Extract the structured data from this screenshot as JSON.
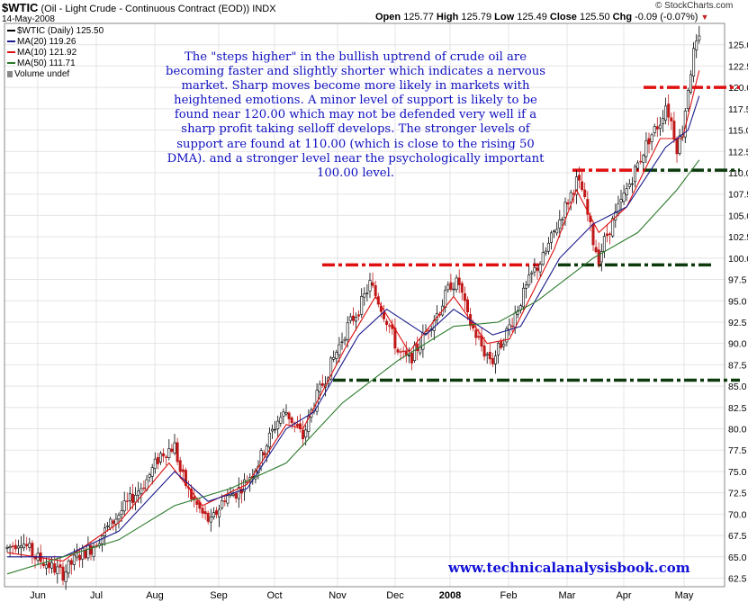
{
  "header": {
    "symbol": "$WTIC",
    "description": "(Oil - Light Crude - Continuous Contract (EOD))",
    "exchange": "INDX",
    "date": "14-May-2008",
    "brand": "© StockCharts.com",
    "quote": {
      "open_label": "Open",
      "open": "125.77",
      "high_label": "High",
      "high": "125.79",
      "low_label": "Low",
      "low": "125.49",
      "close_label": "Close",
      "close": "125.50",
      "chg_label": "Chg",
      "chg": "-0.09 (-0.07%)"
    }
  },
  "legend": [
    {
      "label": "$WTIC (Daily) 125.50",
      "color": "#000000"
    },
    {
      "label": "MA(20) 119.26",
      "color": "#1a1a8c"
    },
    {
      "label": "MA(10) 121.92",
      "color": "#e01010"
    },
    {
      "label": "MA(50) 111.71",
      "color": "#2a7a2a"
    },
    {
      "label": "Volume undef",
      "color": "#888888"
    }
  ],
  "annotation": "The \"steps higher\" in the bullish uptrend of crude oil are becoming faster and slightly shorter which indicates a nervous market.  Sharp moves become more likely in markets with heightened emotions. A minor level of support is likely to be found near 120.00 which may not be defended very well if a sharp profit taking selloff develops.  The stronger levels of support are found at 110.00 (which is close to the rising 50 DMA). and a stronger level near the psychologically important 100.00 level.",
  "website": "www.technicalanalysisbook.com",
  "chart_data": {
    "type": "line",
    "ylim": [
      61.5,
      127.5
    ],
    "y_ticks": [
      "62.5",
      "65.0",
      "67.5",
      "70.0",
      "72.5",
      "75.0",
      "77.5",
      "80.0",
      "82.5",
      "85.0",
      "87.5",
      "90.0",
      "92.5",
      "95.0",
      "97.5",
      "100.0",
      "102.5",
      "105.0",
      "107.5",
      "110.0",
      "112.5",
      "115.0",
      "117.5",
      "120.0",
      "122.5",
      "125.0"
    ],
    "x_labels": [
      "Jun",
      "Jul",
      "Aug",
      "Sep",
      "Oct",
      "Nov",
      "Dec",
      "2008",
      "Feb",
      "Mar",
      "Apr",
      "May"
    ],
    "x_label_bold_index": 7,
    "grid": true,
    "price_path": [
      [
        0,
        66
      ],
      [
        5,
        67
      ],
      [
        10,
        65
      ],
      [
        15,
        64
      ],
      [
        20,
        63
      ],
      [
        25,
        65
      ],
      [
        30,
        66
      ],
      [
        35,
        68
      ],
      [
        40,
        70
      ],
      [
        45,
        72
      ],
      [
        50,
        74
      ],
      [
        55,
        77
      ],
      [
        60,
        78
      ],
      [
        62,
        75
      ],
      [
        66,
        72
      ],
      [
        70,
        70
      ],
      [
        73,
        69
      ],
      [
        78,
        72
      ],
      [
        82,
        72.5
      ],
      [
        86,
        74
      ],
      [
        90,
        76
      ],
      [
        94,
        79
      ],
      [
        97,
        81
      ],
      [
        100,
        82
      ],
      [
        104,
        80
      ],
      [
        106,
        79
      ],
      [
        110,
        83
      ],
      [
        114,
        86
      ],
      [
        118,
        89
      ],
      [
        122,
        92
      ],
      [
        126,
        94
      ],
      [
        130,
        97
      ],
      [
        133,
        95
      ],
      [
        137,
        92
      ],
      [
        140,
        89
      ],
      [
        144,
        88
      ],
      [
        148,
        90
      ],
      [
        151,
        92
      ],
      [
        155,
        94
      ],
      [
        159,
        97
      ],
      [
        162,
        97
      ],
      [
        165,
        93
      ],
      [
        168,
        91
      ],
      [
        171,
        89
      ],
      [
        174,
        88
      ],
      [
        177,
        90
      ],
      [
        180,
        92
      ],
      [
        184,
        95
      ],
      [
        188,
        98
      ],
      [
        192,
        100
      ],
      [
        196,
        103
      ],
      [
        200,
        106
      ],
      [
        204,
        109
      ],
      [
        206,
        108
      ],
      [
        208,
        105
      ],
      [
        210,
        102
      ],
      [
        212,
        100
      ],
      [
        214,
        102
      ],
      [
        218,
        105
      ],
      [
        222,
        108
      ],
      [
        226,
        111
      ],
      [
        230,
        114
      ],
      [
        234,
        116
      ],
      [
        236,
        118
      ],
      [
        238,
        116
      ],
      [
        240,
        113
      ],
      [
        242,
        115
      ],
      [
        244,
        120
      ],
      [
        246,
        124
      ],
      [
        248,
        125.5
      ]
    ],
    "series": [
      {
        "name": "MA(10)",
        "values": [
          [
            0,
            65.5
          ],
          [
            20,
            64.5
          ],
          [
            40,
            69
          ],
          [
            58,
            76
          ],
          [
            70,
            71
          ],
          [
            86,
            73.5
          ],
          [
            100,
            80.5
          ],
          [
            106,
            80
          ],
          [
            122,
            90
          ],
          [
            132,
            95.5
          ],
          [
            144,
            89
          ],
          [
            160,
            95.5
          ],
          [
            172,
            90
          ],
          [
            180,
            90.5
          ],
          [
            196,
            101
          ],
          [
            204,
            108
          ],
          [
            212,
            103
          ],
          [
            222,
            106
          ],
          [
            234,
            114
          ],
          [
            242,
            114
          ],
          [
            248,
            122
          ]
        ]
      },
      {
        "name": "MA(20)",
        "values": [
          [
            0,
            65
          ],
          [
            20,
            65
          ],
          [
            40,
            68
          ],
          [
            60,
            75
          ],
          [
            72,
            71.5
          ],
          [
            86,
            73
          ],
          [
            100,
            80
          ],
          [
            110,
            82
          ],
          [
            126,
            91
          ],
          [
            136,
            94
          ],
          [
            150,
            91
          ],
          [
            160,
            94
          ],
          [
            174,
            91
          ],
          [
            184,
            92
          ],
          [
            198,
            100
          ],
          [
            210,
            104
          ],
          [
            222,
            106
          ],
          [
            236,
            113
          ],
          [
            244,
            115
          ],
          [
            248,
            119
          ]
        ]
      },
      {
        "name": "MA(50)",
        "values": [
          [
            0,
            63
          ],
          [
            20,
            65
          ],
          [
            40,
            67
          ],
          [
            60,
            71
          ],
          [
            80,
            73
          ],
          [
            100,
            76
          ],
          [
            120,
            83
          ],
          [
            140,
            88
          ],
          [
            160,
            92
          ],
          [
            176,
            92.5
          ],
          [
            190,
            95
          ],
          [
            210,
            100
          ],
          [
            226,
            103
          ],
          [
            240,
            108
          ],
          [
            248,
            111.5
          ]
        ]
      }
    ],
    "support_lines": [
      {
        "y": 85.7,
        "x0": 370,
        "x1": 822,
        "color": "#0d3a0d",
        "style": "dash-dot"
      },
      {
        "y": 99.2,
        "x0": 358,
        "x1": 600,
        "color": "#e01010",
        "style": "dash-dot"
      },
      {
        "y": 99.2,
        "x0": 620,
        "x1": 790,
        "color": "#0d3a0d",
        "style": "dash-dot"
      },
      {
        "y": 110.3,
        "x0": 636,
        "x1": 716,
        "color": "#e01010",
        "style": "dash-dot"
      },
      {
        "y": 110.3,
        "x0": 716,
        "x1": 822,
        "color": "#0d3a0d",
        "style": "dash-dot"
      },
      {
        "y": 120.0,
        "x0": 715,
        "x1": 822,
        "color": "#e01010",
        "style": "dash-dot"
      }
    ]
  }
}
